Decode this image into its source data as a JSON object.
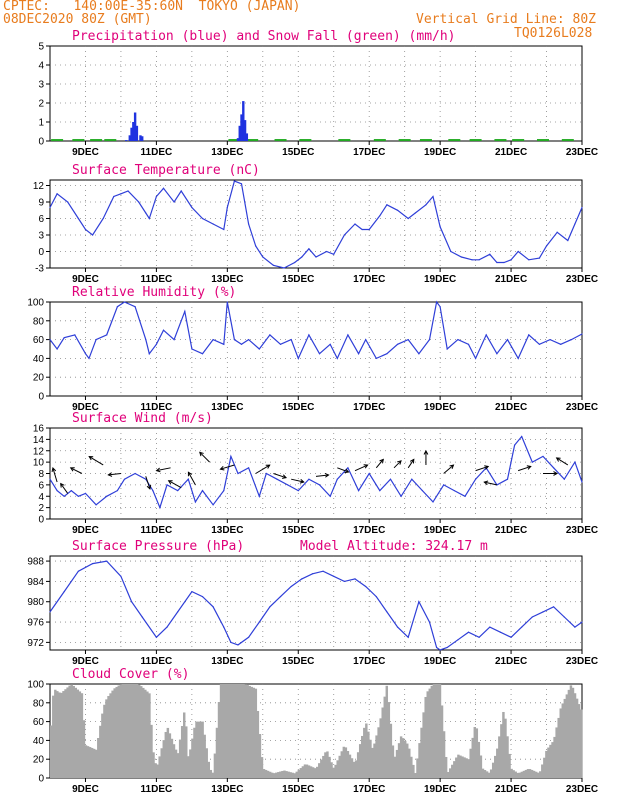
{
  "header": {
    "line1_left": "CPTEC:   140:00E-35:60N  TOKYO (JAPAN)",
    "line2_left": "08DEC2020 80Z (GMT)",
    "line2_right": "Vertical Grid Line: 80Z",
    "line3_right": "TQ0126L028"
  },
  "colors": {
    "header": "#e87c1e",
    "title": "#e0007a",
    "line": "#2f3fd8",
    "precip": "#1f33e0",
    "snow": "#22aa22",
    "cloud": "#a8a8a8"
  },
  "x_ticks": [
    "9DEC",
    "11DEC",
    "13DEC",
    "15DEC",
    "17DEC",
    "19DEC",
    "21DEC",
    "23DEC"
  ],
  "chart_data": [
    {
      "type": "bar",
      "title": "Precipitation (blue) and Snow Fall (green) (mm/h)",
      "ylim": [
        0,
        5
      ],
      "yticks": [
        0,
        1,
        2,
        3,
        4,
        5
      ],
      "series": [
        {
          "name": "Precipitation",
          "values": [
            [
              10.15,
              0.05
            ],
            [
              10.25,
              0.3
            ],
            [
              10.3,
              0.7
            ],
            [
              10.35,
              1.0
            ],
            [
              10.4,
              1.5
            ],
            [
              10.45,
              0.8
            ],
            [
              10.55,
              0.3
            ],
            [
              10.6,
              0.25
            ],
            [
              13.3,
              0.15
            ],
            [
              13.35,
              0.8
            ],
            [
              13.4,
              1.4
            ],
            [
              13.45,
              2.1
            ],
            [
              13.5,
              1.1
            ],
            [
              13.55,
              0.4
            ]
          ]
        },
        {
          "name": "Snow Fall",
          "values": [
            [
              8.2,
              0.05
            ],
            [
              8.8,
              0.05
            ],
            [
              9.3,
              0.05
            ],
            [
              9.7,
              0.05
            ],
            [
              13.2,
              0.05
            ],
            [
              13.7,
              0.05
            ],
            [
              14.5,
              0.05
            ],
            [
              15.2,
              0.05
            ],
            [
              16.3,
              0.05
            ],
            [
              17.3,
              0.05
            ],
            [
              18.0,
              0.05
            ],
            [
              18.6,
              0.05
            ],
            [
              19.4,
              0.05
            ],
            [
              20.0,
              0.05
            ],
            [
              20.7,
              0.05
            ],
            [
              21.2,
              0.05
            ],
            [
              21.9,
              0.05
            ],
            [
              22.6,
              0.05
            ]
          ]
        }
      ]
    },
    {
      "type": "line",
      "title": "Surface Temperature (nC)",
      "ylim": [
        -3,
        13
      ],
      "yticks": [
        -3,
        0,
        3,
        6,
        9,
        12
      ],
      "x": [
        8.0,
        8.2,
        8.5,
        8.8,
        9.0,
        9.2,
        9.5,
        9.8,
        10.0,
        10.2,
        10.5,
        10.7,
        10.8,
        11.0,
        11.2,
        11.5,
        11.7,
        12.0,
        12.3,
        12.6,
        12.9,
        13.0,
        13.2,
        13.4,
        13.6,
        13.8,
        14.0,
        14.3,
        14.6,
        14.9,
        15.1,
        15.3,
        15.5,
        15.8,
        16.0,
        16.3,
        16.6,
        16.8,
        17.0,
        17.3,
        17.5,
        17.8,
        18.1,
        18.3,
        18.6,
        18.8,
        19.0,
        19.3,
        19.6,
        19.9,
        20.1,
        20.4,
        20.6,
        20.8,
        21.0,
        21.2,
        21.5,
        21.8,
        22.0,
        22.3,
        22.6,
        22.8,
        23.0
      ],
      "values": [
        8,
        10.5,
        9,
        6,
        4,
        3,
        6,
        10,
        10.5,
        11,
        9,
        7,
        6,
        10,
        11.5,
        9,
        11,
        8,
        6,
        5,
        4,
        8,
        12.8,
        12.3,
        5,
        1,
        -1,
        -2.5,
        -3,
        -2,
        -1,
        0.5,
        -1,
        0,
        -0.5,
        3,
        5,
        4,
        4,
        6.5,
        8.5,
        7.5,
        6,
        7,
        8.5,
        10,
        4.5,
        0,
        -1,
        -1.5,
        -1.5,
        -0.5,
        -2,
        -2,
        -1.5,
        0,
        -1.5,
        -1.2,
        1,
        3.5,
        2,
        5,
        8
      ]
    },
    {
      "type": "line",
      "title": "Relative Humidity (%)",
      "ylim": [
        0,
        100
      ],
      "yticks": [
        0,
        20,
        40,
        60,
        80,
        100
      ],
      "x": [
        8.0,
        8.2,
        8.4,
        8.7,
        9.0,
        9.1,
        9.3,
        9.6,
        9.9,
        10.1,
        10.4,
        10.7,
        10.8,
        11.0,
        11.2,
        11.5,
        11.8,
        12.0,
        12.3,
        12.6,
        12.9,
        13.0,
        13.2,
        13.4,
        13.6,
        13.9,
        14.2,
        14.5,
        14.8,
        15.0,
        15.3,
        15.6,
        15.9,
        16.1,
        16.4,
        16.7,
        16.9,
        17.2,
        17.5,
        17.8,
        18.1,
        18.4,
        18.7,
        18.9,
        19.0,
        19.2,
        19.5,
        19.8,
        20.0,
        20.3,
        20.6,
        20.9,
        21.2,
        21.5,
        21.8,
        22.1,
        22.4,
        22.7,
        23.0
      ],
      "values": [
        60,
        50,
        62,
        65,
        45,
        40,
        60,
        65,
        95,
        100,
        95,
        60,
        45,
        55,
        70,
        60,
        90,
        50,
        45,
        60,
        55,
        100,
        60,
        55,
        60,
        50,
        65,
        55,
        60,
        40,
        65,
        45,
        55,
        40,
        65,
        45,
        60,
        40,
        45,
        55,
        60,
        45,
        60,
        100,
        95,
        50,
        60,
        55,
        40,
        65,
        45,
        60,
        40,
        65,
        55,
        60,
        55,
        60,
        66
      ]
    },
    {
      "type": "line",
      "title": "Surface Wind (m/s)",
      "ylim": [
        0,
        16
      ],
      "yticks": [
        0,
        2,
        4,
        6,
        8,
        10,
        12,
        14,
        16
      ],
      "x": [
        8.0,
        8.2,
        8.4,
        8.6,
        8.8,
        9.0,
        9.3,
        9.6,
        9.9,
        10.1,
        10.4,
        10.7,
        10.9,
        11.1,
        11.3,
        11.6,
        11.9,
        12.1,
        12.3,
        12.6,
        12.9,
        13.1,
        13.3,
        13.6,
        13.9,
        14.1,
        14.4,
        14.7,
        15.0,
        15.3,
        15.6,
        15.9,
        16.1,
        16.4,
        16.7,
        17.0,
        17.3,
        17.6,
        17.9,
        18.2,
        18.5,
        18.8,
        19.1,
        19.4,
        19.7,
        20.0,
        20.3,
        20.6,
        20.9,
        21.1,
        21.3,
        21.6,
        21.9,
        22.2,
        22.5,
        22.8,
        23.0
      ],
      "values": [
        7,
        5,
        4,
        5,
        4,
        4.5,
        2.5,
        4,
        5,
        7,
        8,
        7,
        5,
        2,
        6,
        5,
        7,
        3,
        5,
        2.5,
        5,
        11,
        8,
        9,
        4,
        8,
        7,
        6,
        5,
        7,
        6,
        4,
        7,
        9,
        5,
        8,
        5,
        7,
        4,
        7,
        5,
        3,
        6,
        5,
        4,
        7,
        9,
        6,
        7,
        13,
        14.5,
        10,
        11,
        9,
        7,
        10,
        6.5
      ]
    },
    {
      "type": "line",
      "title": "Surface Pressure (hPa)",
      "annotation": "Model Altitude: 324.17 m",
      "ylim": [
        970.5,
        989
      ],
      "yticks": [
        972,
        976,
        980,
        984,
        988
      ],
      "x": [
        8.0,
        8.4,
        8.8,
        9.2,
        9.6,
        10.0,
        10.3,
        10.6,
        11.0,
        11.3,
        11.6,
        12.0,
        12.3,
        12.6,
        12.9,
        13.1,
        13.3,
        13.6,
        13.9,
        14.2,
        14.5,
        14.8,
        15.1,
        15.4,
        15.7,
        16.0,
        16.3,
        16.6,
        16.9,
        17.2,
        17.5,
        17.8,
        18.1,
        18.4,
        18.7,
        18.9,
        19.0,
        19.2,
        19.5,
        19.8,
        20.1,
        20.4,
        20.7,
        21.0,
        21.3,
        21.6,
        21.9,
        22.2,
        22.5,
        22.8,
        23.0
      ],
      "values": [
        978,
        982,
        986,
        987.5,
        988,
        985,
        980,
        977,
        973,
        975,
        978,
        982,
        981,
        979,
        975,
        972,
        971.5,
        973,
        976,
        979,
        981,
        983,
        984.5,
        985.5,
        986,
        985,
        984,
        984.5,
        983,
        981,
        978,
        975,
        973,
        980,
        976,
        971,
        970.5,
        971,
        972.5,
        974,
        973,
        975,
        974,
        973,
        975,
        977,
        978,
        979,
        977,
        975,
        976
      ]
    },
    {
      "type": "area",
      "title": "Cloud Cover (%)",
      "ylim": [
        0,
        100
      ],
      "yticks": [
        0,
        20,
        40,
        60,
        80,
        100
      ],
      "x": [
        8.0,
        8.1,
        8.3,
        8.6,
        8.9,
        9.0,
        9.3,
        9.5,
        9.6,
        9.8,
        10.0,
        10.2,
        10.5,
        10.8,
        10.9,
        11.0,
        11.3,
        11.6,
        11.8,
        11.9,
        12.1,
        12.3,
        12.5,
        12.6,
        12.8,
        13.0,
        13.2,
        13.5,
        13.8,
        14.0,
        14.3,
        14.6,
        14.9,
        15.2,
        15.5,
        15.8,
        16.0,
        16.3,
        16.6,
        16.9,
        17.1,
        17.3,
        17.5,
        17.7,
        17.9,
        18.1,
        18.3,
        18.6,
        18.8,
        19.0,
        19.2,
        19.5,
        19.8,
        20.0,
        20.2,
        20.4,
        20.6,
        20.8,
        21.0,
        21.2,
        21.5,
        21.8,
        22.0,
        22.2,
        22.4,
        22.7,
        23.0
      ],
      "values": [
        40,
        95,
        90,
        100,
        90,
        35,
        30,
        75,
        85,
        95,
        100,
        100,
        100,
        90,
        30,
        10,
        55,
        25,
        75,
        20,
        60,
        60,
        10,
        5,
        100,
        100,
        100,
        100,
        95,
        10,
        5,
        8,
        5,
        15,
        10,
        30,
        10,
        35,
        15,
        60,
        30,
        60,
        100,
        20,
        45,
        35,
        5,
        90,
        100,
        100,
        5,
        25,
        20,
        60,
        10,
        5,
        30,
        75,
        10,
        5,
        10,
        5,
        30,
        40,
        75,
        100,
        70
      ]
    }
  ]
}
